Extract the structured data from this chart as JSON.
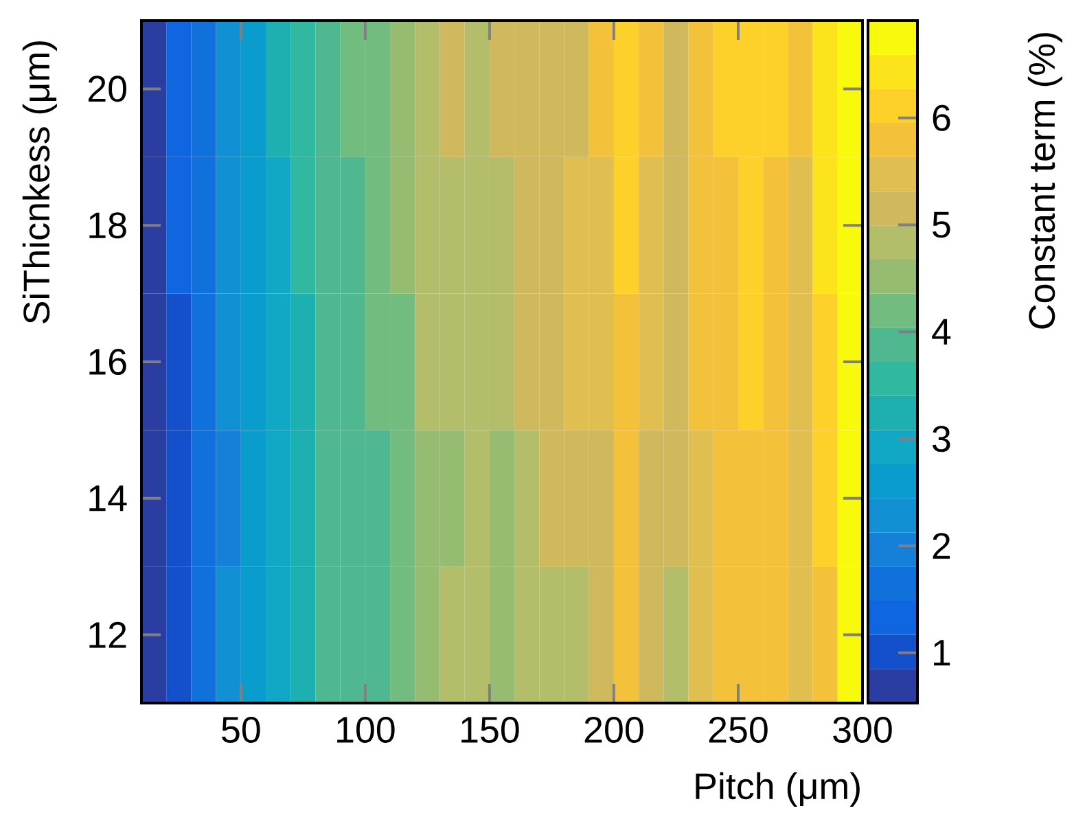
{
  "chart_data": {
    "type": "heatmap",
    "xlabel": "Pitch (μm)",
    "ylabel": "SiThicnkess (μm)",
    "clabel": "Constant term (%)",
    "x": [
      15,
      25,
      35,
      45,
      55,
      65,
      75,
      85,
      95,
      105,
      115,
      125,
      135,
      145,
      155,
      165,
      175,
      185,
      195,
      205,
      215,
      225,
      235,
      245,
      255,
      265,
      275,
      285,
      295
    ],
    "y": [
      20,
      18,
      16,
      14,
      12
    ],
    "cells": [
      [
        0.7,
        1.3,
        1.6,
        2.3,
        2.6,
        3.2,
        3.6,
        3.9,
        4.2,
        4.2,
        4.5,
        4.8,
        5.2,
        4.8,
        5.2,
        5.2,
        5.2,
        5.2,
        5.8,
        6.1,
        5.8,
        5.2,
        5.8,
        6.1,
        6.1,
        6.1,
        5.8,
        6.4,
        6.8
      ],
      [
        0.7,
        1.3,
        1.6,
        2.3,
        2.6,
        2.9,
        3.6,
        3.9,
        3.9,
        4.2,
        4.5,
        4.8,
        4.8,
        4.8,
        4.8,
        5.2,
        5.2,
        5.5,
        5.5,
        6.1,
        5.5,
        5.2,
        5.8,
        5.8,
        6.1,
        5.8,
        5.5,
        6.4,
        6.8
      ],
      [
        0.7,
        1.0,
        1.6,
        2.3,
        2.6,
        2.9,
        3.2,
        3.9,
        3.9,
        4.2,
        4.2,
        4.8,
        4.8,
        4.8,
        4.8,
        5.2,
        5.2,
        5.5,
        5.5,
        5.8,
        5.5,
        5.2,
        5.8,
        5.8,
        6.1,
        5.8,
        5.5,
        6.1,
        6.8
      ],
      [
        0.7,
        1.0,
        1.6,
        2.0,
        2.6,
        2.9,
        3.2,
        3.9,
        3.9,
        3.9,
        4.2,
        4.5,
        4.5,
        4.8,
        4.5,
        4.8,
        5.2,
        5.2,
        5.2,
        5.8,
        5.2,
        5.2,
        5.5,
        5.8,
        5.8,
        5.8,
        5.5,
        6.1,
        6.8
      ],
      [
        0.7,
        1.0,
        1.6,
        2.3,
        2.6,
        2.9,
        3.2,
        3.9,
        3.9,
        3.9,
        4.2,
        4.5,
        4.8,
        4.8,
        4.5,
        4.8,
        4.8,
        4.8,
        5.2,
        5.8,
        5.2,
        4.8,
        5.5,
        5.8,
        5.8,
        5.8,
        5.5,
        5.8,
        6.8
      ]
    ],
    "xlim": [
      10,
      300
    ],
    "ylim": [
      11,
      21
    ],
    "xticks": [
      50,
      100,
      150,
      200,
      250,
      300
    ],
    "yticks": [
      12,
      14,
      16,
      18,
      20
    ],
    "clim": [
      0.53,
      6.91
    ],
    "cticks": [
      1,
      2,
      3,
      4,
      5,
      6
    ]
  }
}
